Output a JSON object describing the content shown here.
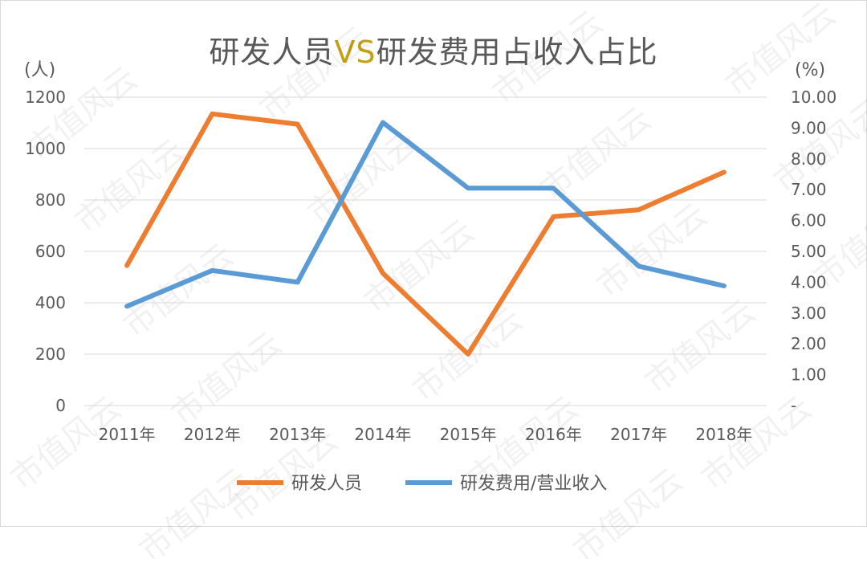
{
  "title": {
    "part1": "研发人员",
    "part2": "VS",
    "part3": "研发费用占收入占比"
  },
  "watermark_text": "市值风云",
  "colors": {
    "personnel": "#ed7d31",
    "ratio": "#5b9bd5",
    "title_highlight": "#c59f12",
    "grid": "#d9d9d9",
    "text": "#595959"
  },
  "chart_data": {
    "type": "line",
    "categories": [
      "2011年",
      "2012年",
      "2013年",
      "2014年",
      "2015年",
      "2016年",
      "2017年",
      "2018年"
    ],
    "series": [
      {
        "name": "研发人员",
        "axis": "left",
        "values": [
          545,
          1135,
          1095,
          515,
          200,
          735,
          762,
          908
        ]
      },
      {
        "name": "研发费用/营业收入",
        "axis": "right",
        "values": [
          3.22,
          4.38,
          4.0,
          9.18,
          7.05,
          7.05,
          4.52,
          3.88
        ]
      }
    ],
    "left_axis": {
      "label": "(人)",
      "ylim": [
        0,
        1200
      ],
      "ticks": [
        "0",
        "200",
        "400",
        "600",
        "800",
        "1000",
        "1200"
      ]
    },
    "right_axis": {
      "label": "(%)",
      "ylim": [
        0,
        10
      ],
      "ticks": [
        "-",
        "1.00",
        "2.00",
        "3.00",
        "4.00",
        "5.00",
        "6.00",
        "7.00",
        "8.00",
        "9.00",
        "10.00"
      ]
    },
    "grid": true,
    "legend_position": "bottom"
  }
}
